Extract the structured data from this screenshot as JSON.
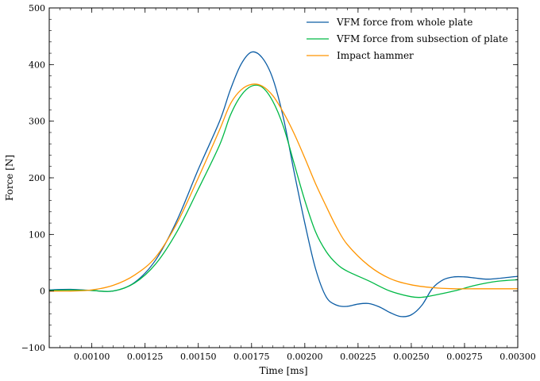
{
  "chart_data": {
    "type": "line",
    "title": "",
    "xlabel": "Time [ms]",
    "ylabel": "Force [N]",
    "xlim": [
      0.0008,
      0.003
    ],
    "ylim": [
      -100,
      500
    ],
    "x_ticks": [
      0.001,
      0.00125,
      0.0015,
      0.00175,
      0.002,
      0.00225,
      0.0025,
      0.00275,
      0.003
    ],
    "x_tick_labels": [
      "0.00100",
      "0.00125",
      "0.00150",
      "0.00175",
      "0.00200",
      "0.00225",
      "0.00250",
      "0.00275",
      "0.00300"
    ],
    "y_ticks": [
      -100,
      0,
      100,
      200,
      300,
      400,
      500
    ],
    "y_tick_labels": [
      "−100",
      "0",
      "100",
      "200",
      "300",
      "400",
      "500"
    ],
    "grid": false,
    "legend_position": "top-right",
    "series": [
      {
        "name": "VFM force from whole plate",
        "color": "#0c5da5",
        "x": [
          0.0008,
          0.0009,
          0.001,
          0.0011,
          0.0012,
          0.0013,
          0.0014,
          0.0015,
          0.0016,
          0.00165,
          0.0017,
          0.00175,
          0.0018,
          0.00185,
          0.0019,
          0.00195,
          0.002,
          0.00205,
          0.0021,
          0.00215,
          0.0022,
          0.00225,
          0.0023,
          0.00235,
          0.0024,
          0.00245,
          0.0025,
          0.00255,
          0.0026,
          0.00265,
          0.0027,
          0.00275,
          0.0028,
          0.00285,
          0.0029,
          0.003
        ],
        "y": [
          2,
          3,
          1,
          0,
          15,
          55,
          125,
          215,
          300,
          355,
          400,
          422,
          412,
          375,
          305,
          210,
          120,
          40,
          -10,
          -25,
          -27,
          -23,
          -22,
          -28,
          -38,
          -45,
          -42,
          -25,
          5,
          20,
          25,
          25,
          23,
          21,
          22,
          26
        ]
      },
      {
        "name": "VFM force from subsection of plate",
        "color": "#00b945",
        "x": [
          0.0008,
          0.0009,
          0.001,
          0.0011,
          0.0012,
          0.0013,
          0.0014,
          0.0015,
          0.0016,
          0.00165,
          0.0017,
          0.00175,
          0.0018,
          0.00185,
          0.0019,
          0.00195,
          0.002,
          0.00205,
          0.0021,
          0.00215,
          0.0022,
          0.0023,
          0.0024,
          0.0025,
          0.00255,
          0.0026,
          0.0027,
          0.0028,
          0.0029,
          0.003
        ],
        "y": [
          1,
          2,
          1,
          0,
          14,
          48,
          105,
          180,
          258,
          310,
          345,
          362,
          360,
          335,
          290,
          225,
          160,
          105,
          70,
          48,
          35,
          18,
          0,
          -10,
          -11,
          -8,
          0,
          10,
          17,
          20
        ]
      },
      {
        "name": "Impact hammer",
        "color": "#ff9500",
        "x": [
          0.0008,
          0.0009,
          0.001,
          0.0011,
          0.0012,
          0.0013,
          0.0014,
          0.0015,
          0.0016,
          0.00165,
          0.0017,
          0.00175,
          0.0018,
          0.00185,
          0.0019,
          0.00195,
          0.002,
          0.00205,
          0.0021,
          0.00215,
          0.0022,
          0.0023,
          0.0024,
          0.0025,
          0.0026,
          0.0027,
          0.0028,
          0.0029,
          0.003
        ],
        "y": [
          0,
          0,
          2,
          10,
          28,
          60,
          120,
          200,
          285,
          330,
          355,
          365,
          362,
          345,
          315,
          278,
          235,
          190,
          150,
          112,
          82,
          45,
          22,
          11,
          6,
          4,
          4,
          4,
          4
        ]
      }
    ]
  }
}
